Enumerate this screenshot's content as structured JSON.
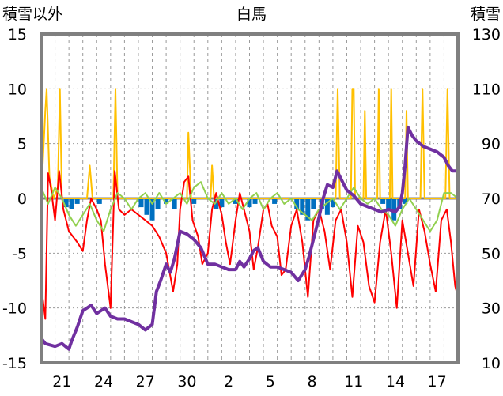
{
  "chart_data": {
    "type": "line",
    "title": "白馬",
    "left_axis_label": "積雪以外",
    "right_axis_label": "積雪",
    "y_left": {
      "min": -15,
      "max": 15,
      "ticks": [
        15,
        10,
        5,
        0,
        -5,
        -10,
        -15
      ]
    },
    "y_right": {
      "min": 10,
      "max": 130,
      "ticks": [
        130,
        110,
        90,
        70,
        50,
        30,
        10
      ]
    },
    "x_range": [
      0,
      30
    ],
    "x_tick_labels": [
      {
        "x": 1.5,
        "label": "21"
      },
      {
        "x": 4.5,
        "label": "24"
      },
      {
        "x": 7.5,
        "label": "27"
      },
      {
        "x": 10.5,
        "label": "30"
      },
      {
        "x": 13.5,
        "label": "2"
      },
      {
        "x": 16.5,
        "label": "5"
      },
      {
        "x": 19.5,
        "label": "8"
      },
      {
        "x": 22.5,
        "label": "11"
      },
      {
        "x": 25.5,
        "label": "14"
      },
      {
        "x": 28.5,
        "label": "17"
      }
    ],
    "grid": "vertical dashed daily, horizontal dotted at y ticks",
    "colors": {
      "precip": "#FFC000",
      "temperature": "#FF0000",
      "sunshine_like": "#92D050",
      "bars": "#0070C0",
      "snow_depth": "#7030A0",
      "frame": "#808080"
    },
    "series": [
      {
        "key": "precip",
        "color": "#FFC000",
        "points": [
          [
            0,
            0
          ],
          [
            0.3,
            8
          ],
          [
            0.4,
            10
          ],
          [
            0.6,
            2
          ],
          [
            0.9,
            0
          ],
          [
            1.2,
            1
          ],
          [
            1.35,
            10
          ],
          [
            1.5,
            0
          ],
          [
            3.3,
            0
          ],
          [
            3.5,
            3
          ],
          [
            3.7,
            0
          ],
          [
            5.2,
            0
          ],
          [
            5.35,
            10
          ],
          [
            5.5,
            0
          ],
          [
            10.5,
            0
          ],
          [
            10.6,
            6
          ],
          [
            10.8,
            0
          ],
          [
            12.2,
            0
          ],
          [
            12.3,
            3
          ],
          [
            12.45,
            0
          ],
          [
            21.2,
            0
          ],
          [
            21.35,
            10
          ],
          [
            21.5,
            0
          ],
          [
            22.3,
            0
          ],
          [
            22.4,
            10
          ],
          [
            22.5,
            10
          ],
          [
            22.6,
            0
          ],
          [
            23.2,
            0
          ],
          [
            23.3,
            8
          ],
          [
            23.4,
            0
          ],
          [
            24.2,
            0
          ],
          [
            24.3,
            10
          ],
          [
            24.4,
            0
          ],
          [
            25.1,
            0
          ],
          [
            25.2,
            10
          ],
          [
            25.3,
            0
          ],
          [
            26.2,
            0
          ],
          [
            26.3,
            8
          ],
          [
            26.4,
            0
          ],
          [
            27.3,
            0
          ],
          [
            27.45,
            10
          ],
          [
            27.6,
            0
          ],
          [
            29.1,
            0
          ],
          [
            29.25,
            10
          ],
          [
            29.4,
            0
          ],
          [
            30,
            0
          ]
        ]
      },
      {
        "key": "temperature",
        "color": "#FF0000",
        "points": [
          [
            0,
            -8
          ],
          [
            0.3,
            -11
          ],
          [
            0.5,
            2.3
          ],
          [
            0.7,
            1
          ],
          [
            1,
            -2
          ],
          [
            1.3,
            2.5
          ],
          [
            1.6,
            -1
          ],
          [
            2,
            -3
          ],
          [
            2.3,
            -3.5
          ],
          [
            2.6,
            -4
          ],
          [
            3,
            -4.8
          ],
          [
            3.3,
            -2
          ],
          [
            3.6,
            0
          ],
          [
            4,
            -1
          ],
          [
            4.3,
            -2
          ],
          [
            4.6,
            -6
          ],
          [
            5,
            -10
          ],
          [
            5.3,
            2.5
          ],
          [
            5.6,
            -1
          ],
          [
            6,
            -1.5
          ],
          [
            6.5,
            -1
          ],
          [
            7,
            -1.5
          ],
          [
            7.5,
            -2
          ],
          [
            8,
            -2.5
          ],
          [
            8.5,
            -3.5
          ],
          [
            9,
            -5
          ],
          [
            9.5,
            -8.5
          ],
          [
            9.8,
            -6
          ],
          [
            10,
            -1
          ],
          [
            10.3,
            1.5
          ],
          [
            10.6,
            2
          ],
          [
            10.9,
            -2
          ],
          [
            11.3,
            -3.5
          ],
          [
            11.6,
            -6
          ],
          [
            12,
            -5
          ],
          [
            12.3,
            -1
          ],
          [
            12.6,
            0.5
          ],
          [
            13,
            -1.5
          ],
          [
            13.3,
            -4
          ],
          [
            13.6,
            -6
          ],
          [
            14,
            -2
          ],
          [
            14.3,
            0.5
          ],
          [
            14.6,
            -1
          ],
          [
            15,
            -3
          ],
          [
            15.3,
            -6.5
          ],
          [
            15.6,
            -4.5
          ],
          [
            16,
            -1
          ],
          [
            16.3,
            -0.5
          ],
          [
            16.6,
            -2.5
          ],
          [
            17,
            -3.5
          ],
          [
            17.3,
            -7
          ],
          [
            17.6,
            -6.5
          ],
          [
            18,
            -2.5
          ],
          [
            18.4,
            -1
          ],
          [
            18.8,
            -4
          ],
          [
            19.2,
            -9
          ],
          [
            19.6,
            -2
          ],
          [
            20,
            -1
          ],
          [
            20.4,
            -3
          ],
          [
            20.8,
            -6.5
          ],
          [
            21.2,
            -2
          ],
          [
            21.6,
            -1
          ],
          [
            22,
            -4
          ],
          [
            22.4,
            -9
          ],
          [
            22.8,
            -2.5
          ],
          [
            23.2,
            -4
          ],
          [
            23.6,
            -8
          ],
          [
            24,
            -9.5
          ],
          [
            24.4,
            -4
          ],
          [
            24.8,
            -1
          ],
          [
            25.2,
            -5
          ],
          [
            25.6,
            -10
          ],
          [
            26,
            -2
          ],
          [
            26.4,
            -5
          ],
          [
            26.8,
            -8
          ],
          [
            27.2,
            -1
          ],
          [
            27.6,
            -3
          ],
          [
            28,
            -6
          ],
          [
            28.4,
            -8.5
          ],
          [
            28.8,
            -2
          ],
          [
            29.2,
            -1
          ],
          [
            29.5,
            -4
          ],
          [
            29.8,
            -8
          ],
          [
            30,
            -9
          ]
        ]
      },
      {
        "key": "sunshine_like",
        "color": "#92D050",
        "points": [
          [
            0,
            1
          ],
          [
            0.5,
            -0.5
          ],
          [
            1,
            1
          ],
          [
            1.5,
            0
          ],
          [
            2,
            -1.5
          ],
          [
            2.5,
            -2.5
          ],
          [
            3,
            -1.5
          ],
          [
            3.5,
            -0.5
          ],
          [
            4,
            -2
          ],
          [
            4.5,
            -3
          ],
          [
            5,
            -1
          ],
          [
            5.5,
            0.5
          ],
          [
            6,
            0
          ],
          [
            6.5,
            -1
          ],
          [
            7,
            0
          ],
          [
            7.5,
            0.5
          ],
          [
            8,
            -0.5
          ],
          [
            8.5,
            0.5
          ],
          [
            9,
            -0.5
          ],
          [
            9.5,
            0
          ],
          [
            10,
            0.5
          ],
          [
            10.5,
            -0.5
          ],
          [
            11,
            1
          ],
          [
            11.5,
            1.5
          ],
          [
            12,
            0
          ],
          [
            12.5,
            -0.5
          ],
          [
            13,
            0.5
          ],
          [
            13.5,
            -0.5
          ],
          [
            14,
            0
          ],
          [
            14.5,
            -1
          ],
          [
            15,
            0
          ],
          [
            15.5,
            0.5
          ],
          [
            16,
            -1
          ],
          [
            16.5,
            0
          ],
          [
            17,
            0.5
          ],
          [
            17.5,
            -0.5
          ],
          [
            18,
            0
          ],
          [
            18.5,
            -1
          ],
          [
            19,
            -1.5
          ],
          [
            19.5,
            -2
          ],
          [
            20,
            -1
          ],
          [
            20.5,
            -0.5
          ],
          [
            21,
            0
          ],
          [
            21.5,
            -1
          ],
          [
            22,
            0
          ],
          [
            22.5,
            1
          ],
          [
            23,
            0
          ],
          [
            23.5,
            -0.5
          ],
          [
            24,
            0
          ],
          [
            24.5,
            -1
          ],
          [
            25,
            -1.5
          ],
          [
            25.5,
            -2.5
          ],
          [
            26,
            -1
          ],
          [
            26.5,
            0
          ],
          [
            27,
            -1
          ],
          [
            27.5,
            -2
          ],
          [
            28,
            -3
          ],
          [
            28.5,
            -2
          ],
          [
            29,
            0.5
          ],
          [
            29.5,
            0.5
          ],
          [
            30,
            0
          ]
        ]
      },
      {
        "key": "bars",
        "color": "#0070C0",
        "bars": [
          [
            1.8,
            -0.8
          ],
          [
            2.2,
            -1
          ],
          [
            2.6,
            -0.5
          ],
          [
            4.2,
            -0.5
          ],
          [
            7.2,
            -0.8
          ],
          [
            7.6,
            -1.5
          ],
          [
            8.0,
            -2
          ],
          [
            8.4,
            -1
          ],
          [
            9.0,
            -0.5
          ],
          [
            9.6,
            -1
          ],
          [
            11.0,
            -0.5
          ],
          [
            12.6,
            -1
          ],
          [
            13.0,
            -0.8
          ],
          [
            14.0,
            -0.5
          ],
          [
            15.0,
            -0.8
          ],
          [
            15.4,
            -0.5
          ],
          [
            16.8,
            -0.5
          ],
          [
            18.4,
            -1
          ],
          [
            18.8,
            -1.5
          ],
          [
            19.2,
            -2
          ],
          [
            19.6,
            -1
          ],
          [
            20.2,
            -1
          ],
          [
            20.6,
            -1.5
          ],
          [
            21.0,
            -0.8
          ],
          [
            24.6,
            -0.5
          ],
          [
            25.0,
            -1
          ],
          [
            25.4,
            -2
          ],
          [
            25.8,
            -1
          ],
          [
            26.2,
            -0.5
          ]
        ]
      },
      {
        "key": "snow_depth",
        "color": "#7030A0",
        "axis": "right",
        "points": [
          [
            0,
            19
          ],
          [
            0.3,
            17
          ],
          [
            1,
            16
          ],
          [
            1.5,
            17
          ],
          [
            2,
            15
          ],
          [
            2.2,
            18
          ],
          [
            2.6,
            23
          ],
          [
            3,
            29
          ],
          [
            3.3,
            30
          ],
          [
            3.6,
            31
          ],
          [
            4,
            28
          ],
          [
            4.3,
            29
          ],
          [
            4.6,
            30
          ],
          [
            5,
            27
          ],
          [
            5.5,
            26
          ],
          [
            6,
            26
          ],
          [
            6.5,
            25
          ],
          [
            7,
            24
          ],
          [
            7.5,
            22
          ],
          [
            8,
            24
          ],
          [
            8.3,
            36
          ],
          [
            8.6,
            40
          ],
          [
            9,
            46
          ],
          [
            9.3,
            43
          ],
          [
            9.6,
            48
          ],
          [
            10,
            58
          ],
          [
            10.5,
            57
          ],
          [
            11,
            55
          ],
          [
            11.5,
            52
          ],
          [
            12,
            46
          ],
          [
            12.5,
            46
          ],
          [
            13,
            45
          ],
          [
            13.5,
            44
          ],
          [
            14,
            44
          ],
          [
            14.3,
            47
          ],
          [
            14.6,
            45
          ],
          [
            15,
            48
          ],
          [
            15.3,
            51
          ],
          [
            15.6,
            52
          ],
          [
            16,
            47
          ],
          [
            16.5,
            45
          ],
          [
            17,
            45
          ],
          [
            17.5,
            44
          ],
          [
            18,
            43
          ],
          [
            18.5,
            40
          ],
          [
            19,
            44
          ],
          [
            19.3,
            49
          ],
          [
            19.6,
            55
          ],
          [
            20,
            63
          ],
          [
            20.3,
            70
          ],
          [
            20.6,
            75
          ],
          [
            21,
            74
          ],
          [
            21.3,
            80
          ],
          [
            21.6,
            77
          ],
          [
            22,
            73
          ],
          [
            22.5,
            71
          ],
          [
            23,
            68
          ],
          [
            23.5,
            67
          ],
          [
            24,
            66
          ],
          [
            24.5,
            65
          ],
          [
            25,
            66
          ],
          [
            25.5,
            65
          ],
          [
            25.8,
            67
          ],
          [
            26,
            72
          ],
          [
            26.2,
            82
          ],
          [
            26.4,
            96
          ],
          [
            26.7,
            93
          ],
          [
            27,
            91
          ],
          [
            27.5,
            89
          ],
          [
            28,
            88
          ],
          [
            28.5,
            87
          ],
          [
            29,
            85
          ],
          [
            29.3,
            82
          ],
          [
            29.6,
            80
          ],
          [
            30,
            80
          ]
        ]
      }
    ]
  }
}
